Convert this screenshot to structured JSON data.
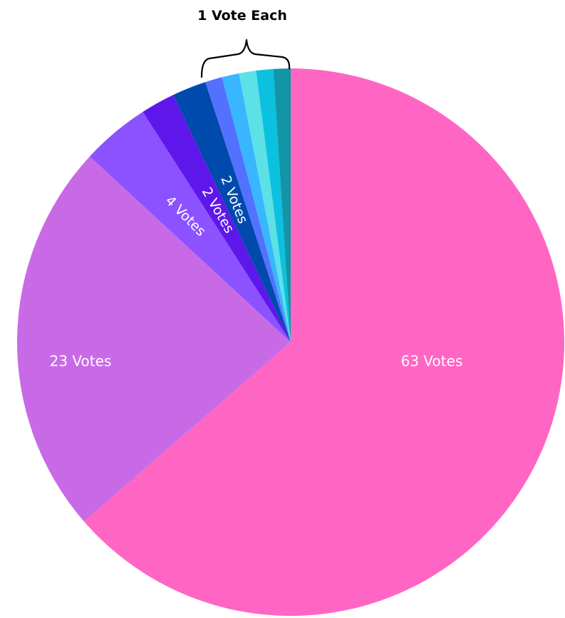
{
  "chart_data": {
    "type": "pie",
    "slices": [
      {
        "value": 63,
        "color": "#FF66C4",
        "label": "63 Votes"
      },
      {
        "value": 23,
        "color": "#C86AE6",
        "label": "23 Votes"
      },
      {
        "value": 4,
        "color": "#8C52FF",
        "label": "4 Votes"
      },
      {
        "value": 2,
        "color": "#5E17EB",
        "label": "2 Votes"
      },
      {
        "value": 2,
        "color": "#004AAD",
        "label": "2 Votes"
      },
      {
        "value": 1,
        "color": "#5271FF",
        "label": ""
      },
      {
        "value": 1,
        "color": "#38B6FF",
        "label": ""
      },
      {
        "value": 1,
        "color": "#5CE1E6",
        "label": ""
      },
      {
        "value": 1,
        "color": "#0CC0DF",
        "label": ""
      },
      {
        "value": 1,
        "color": "#1295A6",
        "label": ""
      }
    ],
    "annotation": "1 Vote Each",
    "start": "12 o'clock",
    "direction": "clockwise"
  }
}
